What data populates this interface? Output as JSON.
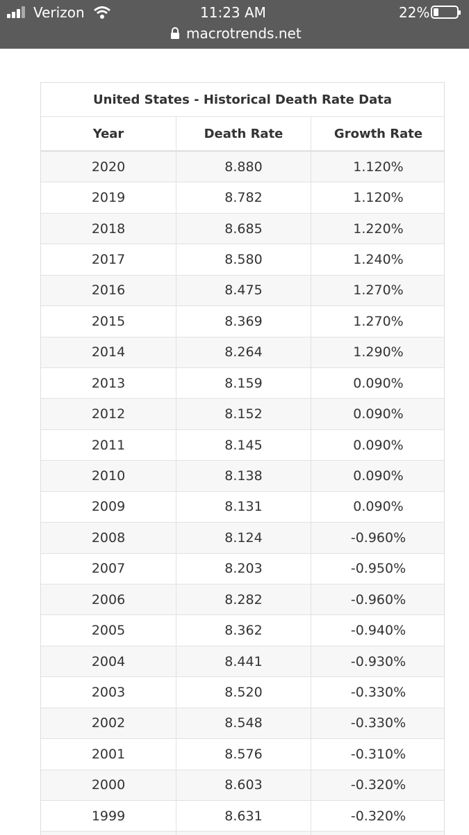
{
  "status_bar": {
    "carrier": "Verizon",
    "time": "11:23 AM",
    "url": "macrotrends.net",
    "battery": "22%"
  },
  "table": {
    "title": "United States - Historical Death Rate Data",
    "columns": [
      "Year",
      "Death Rate",
      "Growth Rate"
    ],
    "rows": [
      [
        "2020",
        "8.880",
        "1.120%"
      ],
      [
        "2019",
        "8.782",
        "1.120%"
      ],
      [
        "2018",
        "8.685",
        "1.220%"
      ],
      [
        "2017",
        "8.580",
        "1.240%"
      ],
      [
        "2016",
        "8.475",
        "1.270%"
      ],
      [
        "2015",
        "8.369",
        "1.270%"
      ],
      [
        "2014",
        "8.264",
        "1.290%"
      ],
      [
        "2013",
        "8.159",
        "0.090%"
      ],
      [
        "2012",
        "8.152",
        "0.090%"
      ],
      [
        "2011",
        "8.145",
        "0.090%"
      ],
      [
        "2010",
        "8.138",
        "0.090%"
      ],
      [
        "2009",
        "8.131",
        "0.090%"
      ],
      [
        "2008",
        "8.124",
        "-0.960%"
      ],
      [
        "2007",
        "8.203",
        "-0.950%"
      ],
      [
        "2006",
        "8.282",
        "-0.960%"
      ],
      [
        "2005",
        "8.362",
        "-0.940%"
      ],
      [
        "2004",
        "8.441",
        "-0.930%"
      ],
      [
        "2003",
        "8.520",
        "-0.330%"
      ],
      [
        "2002",
        "8.548",
        "-0.330%"
      ],
      [
        "2001",
        "8.576",
        "-0.310%"
      ],
      [
        "2000",
        "8.603",
        "-0.320%"
      ],
      [
        "1999",
        "8.631",
        "-0.320%"
      ]
    ]
  }
}
